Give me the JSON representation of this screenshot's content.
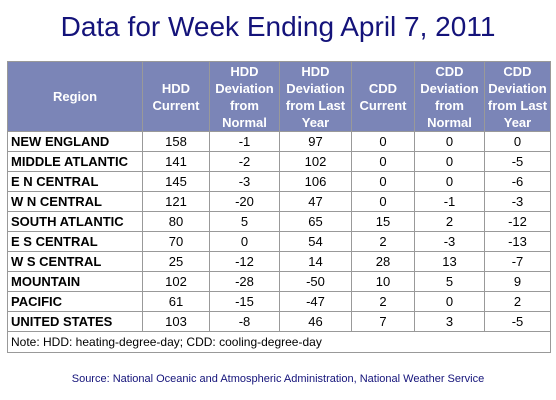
{
  "title": "Data for Week Ending April 7, 2011",
  "table": {
    "headers": [
      "Region",
      "HDD Current",
      "HDD Deviation from Normal",
      "HDD Deviation from Last Year",
      "CDD Current",
      "CDD Deviation from Normal",
      "CDD Deviation from Last Year"
    ],
    "rows": [
      [
        "NEW ENGLAND",
        "158",
        "-1",
        "97",
        "0",
        "0",
        "0"
      ],
      [
        "MIDDLE ATLANTIC",
        "141",
        "-2",
        "102",
        "0",
        "0",
        "-5"
      ],
      [
        "E N CENTRAL",
        "145",
        "-3",
        "106",
        "0",
        "0",
        "-6"
      ],
      [
        "W N CENTRAL",
        "121",
        "-20",
        "47",
        "0",
        "-1",
        "-3"
      ],
      [
        "SOUTH ATLANTIC",
        "80",
        "5",
        "65",
        "15",
        "2",
        "-12"
      ],
      [
        "E S CENTRAL",
        "70",
        "0",
        "54",
        "2",
        "-3",
        "-13"
      ],
      [
        "W S CENTRAL",
        "25",
        "-12",
        "14",
        "28",
        "13",
        "-7"
      ],
      [
        "MOUNTAIN",
        "102",
        "-28",
        "-50",
        "10",
        "5",
        "9"
      ],
      [
        "PACIFIC",
        "61",
        "-15",
        "-47",
        "2",
        "0",
        "2"
      ],
      [
        "UNITED STATES",
        "103",
        "-8",
        "46",
        "7",
        "3",
        "-5"
      ]
    ],
    "note": "Note: HDD: heating-degree-day; CDD: cooling-degree-day"
  },
  "source": "Source:  National Oceanic and Atmospheric Administration, National Weather Service",
  "colors": {
    "title": "#14137a",
    "header_bg": "#7b85b7",
    "header_text": "#ffffff",
    "grid": "#999999"
  }
}
